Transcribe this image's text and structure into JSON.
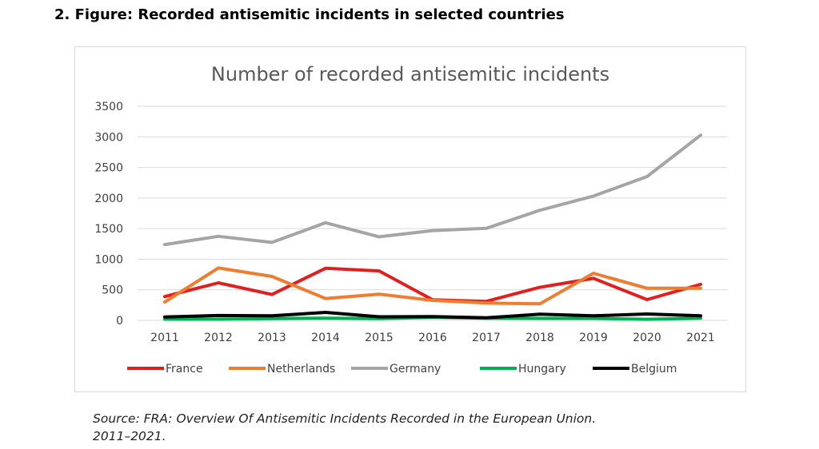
{
  "heading": "2. Figure: Recorded antisemitic incidents in selected countries",
  "source_line1": "Source: FRA: Overview Of Antisemitic Incidents Recorded in the European Union.",
  "source_line2": "2011–2021.",
  "chart_data": {
    "type": "line",
    "title": "Number of recorded antisemitic incidents",
    "xlabel": "",
    "ylabel": "",
    "categories": [
      "2011",
      "2012",
      "2013",
      "2014",
      "2015",
      "2016",
      "2017",
      "2018",
      "2019",
      "2020",
      "2021"
    ],
    "ylim": [
      0,
      3500
    ],
    "yticks": [
      0,
      500,
      1000,
      1500,
      2000,
      2500,
      3000,
      3500
    ],
    "grid": true,
    "legend_position": "bottom",
    "series": [
      {
        "name": "France",
        "color": "#e02020",
        "values": [
          389,
          614,
          423,
          851,
          808,
          335,
          311,
          541,
          687,
          339,
          589
        ]
      },
      {
        "name": "Netherlands",
        "color": "#ed7d31",
        "values": [
          300,
          857,
          718,
          358,
          428,
          327,
          284,
          270,
          770,
          525,
          525
        ]
      },
      {
        "name": "Germany",
        "color": "#a5a5a5",
        "values": [
          1239,
          1374,
          1275,
          1596,
          1366,
          1468,
          1504,
          1799,
          2032,
          2351,
          3027
        ]
      },
      {
        "name": "Hungary",
        "color": "#00b050",
        "values": [
          20,
          20,
          30,
          37,
          30,
          48,
          37,
          32,
          33,
          18,
          35
        ]
      },
      {
        "name": "Belgium",
        "color": "#000000",
        "values": [
          56,
          80,
          74,
          130,
          59,
          63,
          42,
          101,
          75,
          105,
          75
        ]
      }
    ]
  }
}
